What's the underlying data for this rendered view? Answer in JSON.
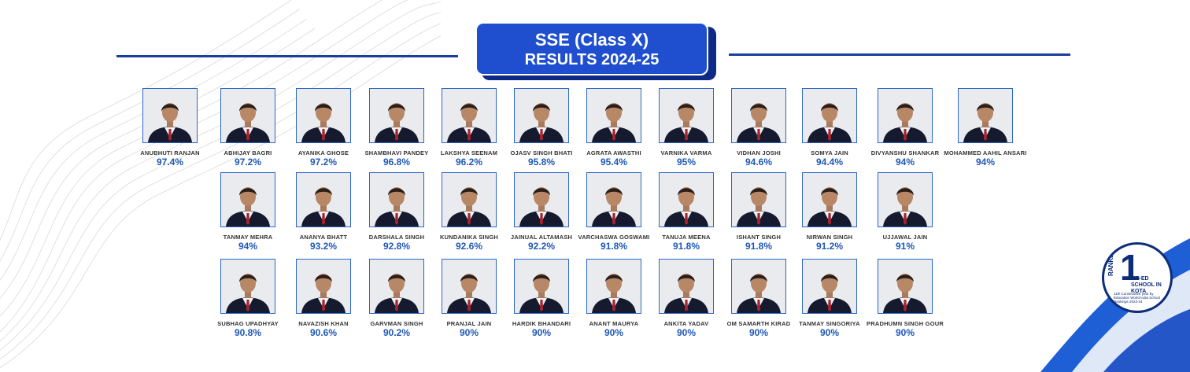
{
  "header": {
    "title_line1": "SSE (Class X)",
    "title_line2": "RESULTS 2024-25"
  },
  "badge": {
    "number": "1",
    "ranked": "RANKED",
    "main": "CO-ED SCHOOL IN KOTA",
    "small": "11th Consecutive year by Education World India School Rankings 2023-24"
  },
  "colors": {
    "accent": "#1f4fcf",
    "score": "#1f58b8",
    "navy": "#0d2d7a"
  },
  "students": [
    {
      "name": "ANUBHUTI RANJAN",
      "score": "97.4%"
    },
    {
      "name": "ABHIJAY BAGRI",
      "score": "97.2%"
    },
    {
      "name": "AYANIKA GHOSE",
      "score": "97.2%"
    },
    {
      "name": "SHAMBHAVI PANDEY",
      "score": "96.8%"
    },
    {
      "name": "LAKSHYA SEENAM",
      "score": "96.2%"
    },
    {
      "name": "OJASV SINGH BHATI",
      "score": "95.8%"
    },
    {
      "name": "AGRATA AWASTHI",
      "score": "95.4%"
    },
    {
      "name": "VARNIKA VARMA",
      "score": "95%"
    },
    {
      "name": "VIDHAN JOSHI",
      "score": "94.6%"
    },
    {
      "name": "SOMYA JAIN",
      "score": "94.4%"
    },
    {
      "name": "DIVYANSHU SHANKAR",
      "score": "94%"
    },
    {
      "name": "MOHAMMED AAHIL ANSARI",
      "score": "94%"
    },
    {
      "name": "TANMAY MEHRA",
      "score": "94%"
    },
    {
      "name": "ANANYA BHATT",
      "score": "93.2%"
    },
    {
      "name": "DARSHALA SINGH",
      "score": "92.8%"
    },
    {
      "name": "KUNDANIKA SINGH",
      "score": "92.6%"
    },
    {
      "name": "JAINUAL ALTAMASH",
      "score": "92.2%"
    },
    {
      "name": "VARCHASWA GOSWAMI",
      "score": "91.8%"
    },
    {
      "name": "TANUJA MEENA",
      "score": "91.8%"
    },
    {
      "name": "ISHANT SINGH",
      "score": "91.8%"
    },
    {
      "name": "NIRWAN SINGH",
      "score": "91.2%"
    },
    {
      "name": "UJJAWAL JAIN",
      "score": "91%"
    },
    {
      "name": "SUBHAG UPADHYAY",
      "score": "90.8%"
    },
    {
      "name": "NAVAZISH KHAN",
      "score": "90.6%"
    },
    {
      "name": "GARVMAN SINGH",
      "score": "90.2%"
    },
    {
      "name": "PRANJAL JAIN",
      "score": "90%"
    },
    {
      "name": "HARDIK BHANDARI",
      "score": "90%"
    },
    {
      "name": "ANANT MAURYA",
      "score": "90%"
    },
    {
      "name": "ANKITA YADAV",
      "score": "90%"
    },
    {
      "name": "OM SAMARTH KIRAD",
      "score": "90%"
    },
    {
      "name": "TANMAY SINGORIYA",
      "score": "90%"
    },
    {
      "name": "PRADHUMN SINGH GOUR",
      "score": "90%"
    }
  ]
}
